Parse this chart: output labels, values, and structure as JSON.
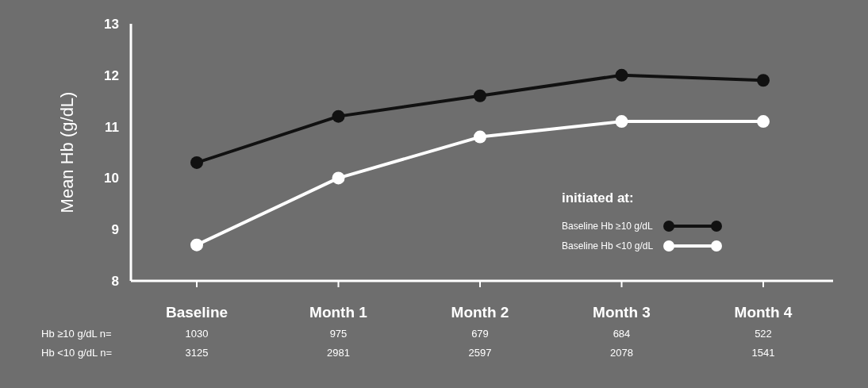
{
  "chart_data": {
    "type": "line",
    "ylabel": "Mean Hb (g/dL)",
    "legend_title": "initiated at:",
    "categories": [
      "Baseline",
      "Month 1",
      "Month 2",
      "Month 3",
      "Month 4"
    ],
    "series": [
      {
        "name": "Baseline Hb ≥10 g/dL",
        "color": "#111111",
        "values": [
          10.3,
          11.2,
          11.6,
          12.0,
          11.9
        ]
      },
      {
        "name": "Baseline Hb <10 g/dL",
        "color": "#ffffff",
        "values": [
          8.7,
          10.0,
          10.8,
          11.1,
          11.1
        ]
      }
    ],
    "ylim": [
      8,
      13
    ],
    "yticks": [
      8,
      9,
      10,
      11,
      12,
      13
    ],
    "grid": false,
    "legend": "right",
    "marker": "circle",
    "line_style": "solid",
    "annotations": [
      "Hb ≥10 g/dL  n=",
      "1030",
      "975",
      "679",
      "684",
      "522",
      "Hb <10 g/dL  n=",
      "3125",
      "2981",
      "2597",
      "2078",
      "1541"
    ]
  }
}
